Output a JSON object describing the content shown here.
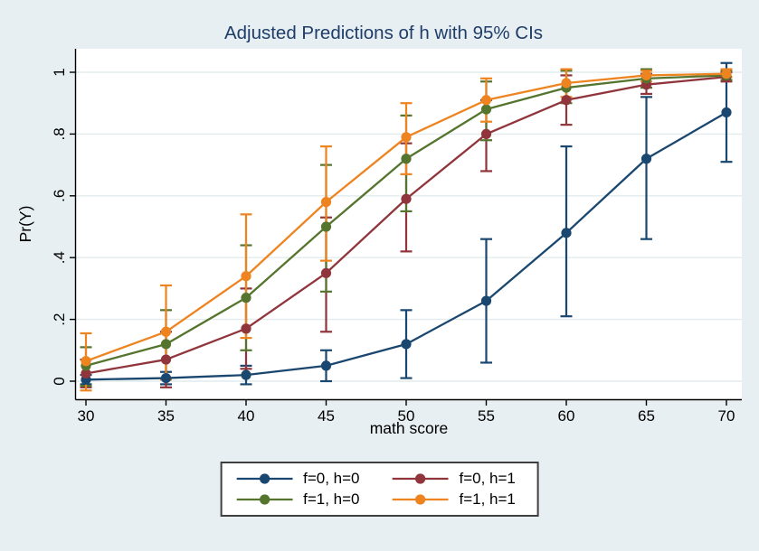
{
  "figure": {
    "background": "#e8eff2",
    "plot_background": "#ffffff",
    "grid_color": "#e2ecee",
    "axis_color": "#000000",
    "text_color": "#000000",
    "title_color": "#1e3d69",
    "legend_border_color": "#3f3f3f"
  },
  "chart_data": {
    "type": "line",
    "title": "Adjusted Predictions of h with 95% CIs",
    "xlabel": "math score",
    "ylabel": "Pr(Y)",
    "grid": "horizontal",
    "legend_position": "bottom",
    "error_bars": "95% CI",
    "x": [
      30,
      35,
      40,
      45,
      50,
      55,
      60,
      65,
      70
    ],
    "xtick_labels": [
      "30",
      "35",
      "40",
      "45",
      "50",
      "55",
      "60",
      "65",
      "70"
    ],
    "xlim": [
      30,
      70
    ],
    "ylim": [
      0,
      1
    ],
    "yticks": [
      0,
      0.2,
      0.4,
      0.6,
      0.8,
      1
    ],
    "ytick_labels": [
      "0",
      ".2",
      ".4",
      ".6",
      ".8",
      "1"
    ],
    "series": [
      {
        "id": "f0h0",
        "name": "f=0, h=0",
        "color": "#1a476f",
        "values": [
          0.005,
          0.01,
          0.02,
          0.05,
          0.12,
          0.26,
          0.48,
          0.72,
          0.87
        ],
        "ci_low": [
          -0.01,
          -0.01,
          -0.01,
          0.0,
          0.01,
          0.06,
          0.21,
          0.46,
          0.71
        ],
        "ci_high": [
          0.02,
          0.03,
          0.05,
          0.1,
          0.23,
          0.46,
          0.76,
          0.92,
          1.03
        ]
      },
      {
        "id": "f0h1",
        "name": "f=0, h=1",
        "color": "#90353b",
        "values": [
          0.025,
          0.07,
          0.17,
          0.35,
          0.59,
          0.8,
          0.91,
          0.96,
          0.985
        ],
        "ci_low": [
          -0.02,
          -0.02,
          0.04,
          0.16,
          0.42,
          0.68,
          0.83,
          0.93,
          0.97
        ],
        "ci_high": [
          0.07,
          0.16,
          0.3,
          0.53,
          0.77,
          0.91,
          0.99,
          0.995,
          1.0
        ]
      },
      {
        "id": "f1h0",
        "name": "f=1, h=0",
        "color": "#55752f",
        "values": [
          0.05,
          0.12,
          0.27,
          0.5,
          0.72,
          0.88,
          0.95,
          0.98,
          0.99
        ],
        "ci_low": [
          -0.015,
          0.01,
          0.1,
          0.29,
          0.55,
          0.78,
          0.9,
          0.95,
          0.975
        ],
        "ci_high": [
          0.11,
          0.23,
          0.44,
          0.7,
          0.86,
          0.97,
          1.005,
          1.01,
          1.005
        ]
      },
      {
        "id": "f1h1",
        "name": "f=1, h=1",
        "color": "#ee8420",
        "values": [
          0.065,
          0.16,
          0.34,
          0.58,
          0.79,
          0.91,
          0.965,
          0.99,
          0.995
        ],
        "ci_low": [
          -0.03,
          0.005,
          0.14,
          0.39,
          0.67,
          0.84,
          0.92,
          0.97,
          0.985
        ],
        "ci_high": [
          0.155,
          0.31,
          0.54,
          0.76,
          0.9,
          0.98,
          1.01,
          1.005,
          1.01
        ]
      }
    ]
  }
}
